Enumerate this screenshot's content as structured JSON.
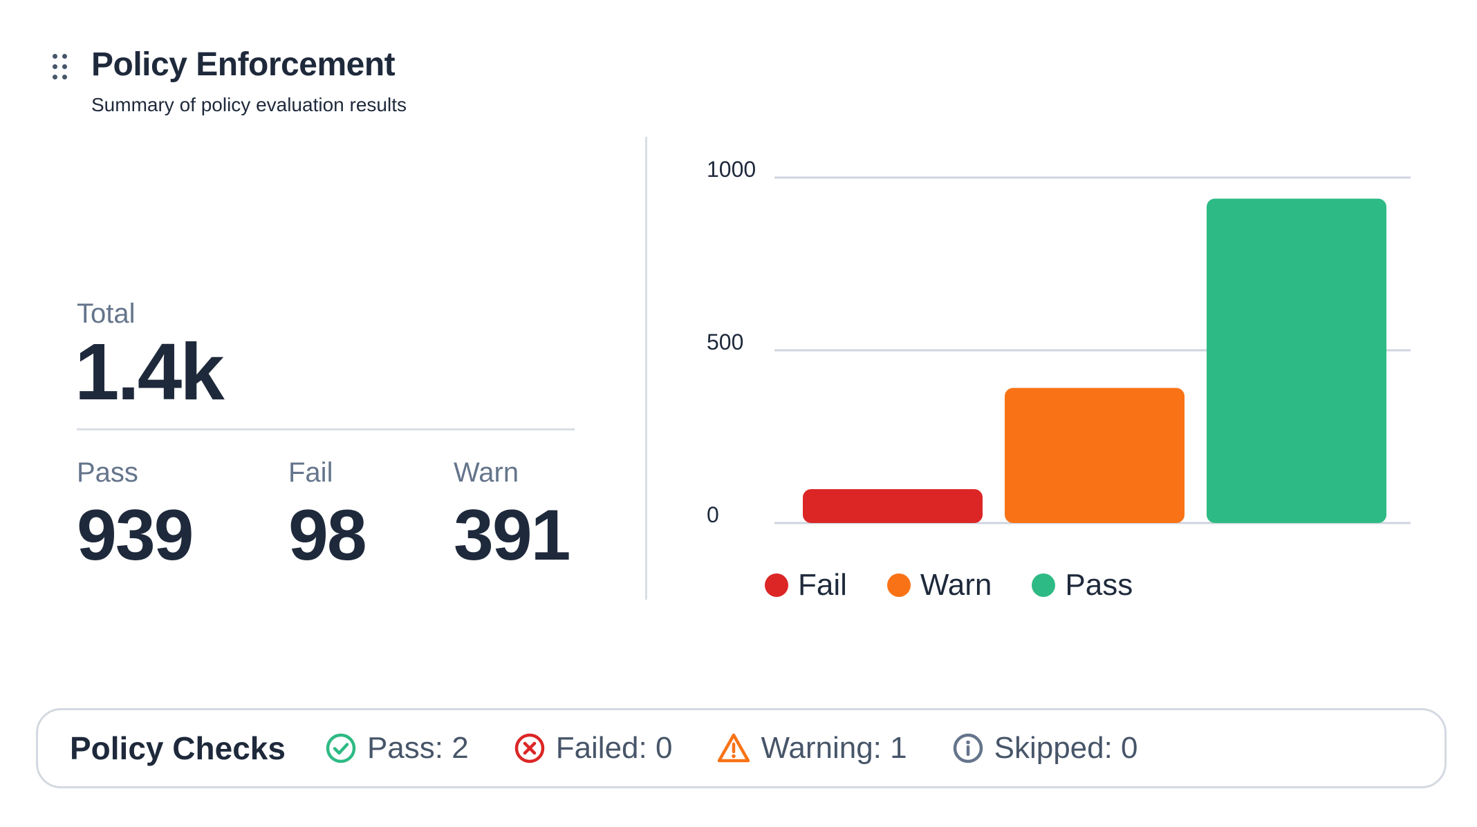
{
  "header": {
    "title": "Policy Enforcement",
    "subtitle": "Summary of policy evaluation results"
  },
  "summary": {
    "total_label": "Total",
    "total_value": "1.4k",
    "stats": [
      {
        "label": "Pass",
        "value": "939"
      },
      {
        "label": "Fail",
        "value": "98"
      },
      {
        "label": "Warn",
        "value": "391"
      }
    ]
  },
  "chart_data": {
    "type": "bar",
    "categories": [
      "Fail",
      "Warn",
      "Pass"
    ],
    "values": [
      98,
      391,
      939
    ],
    "colors": [
      "#dc2626",
      "#f97316",
      "#2eba84"
    ],
    "yticks": [
      "0",
      "500",
      "1000"
    ],
    "ylim": [
      0,
      1000
    ],
    "grid": true,
    "legend": "bottom"
  },
  "legend": [
    {
      "label": "Fail",
      "color": "#dc2626"
    },
    {
      "label": "Warn",
      "color": "#f97316"
    },
    {
      "label": "Pass",
      "color": "#2eba84"
    }
  ],
  "policy_checks": {
    "title": "Policy Checks",
    "items": [
      {
        "label": "Pass: 2",
        "icon": "check-circle-icon",
        "color": "#2eba84"
      },
      {
        "label": "Failed: 0",
        "icon": "x-circle-icon",
        "color": "#dc2626"
      },
      {
        "label": "Warning: 1",
        "icon": "warning-triangle-icon",
        "color": "#f97316"
      },
      {
        "label": "Skipped: 0",
        "icon": "info-circle-icon",
        "color": "#64748b"
      }
    ]
  }
}
